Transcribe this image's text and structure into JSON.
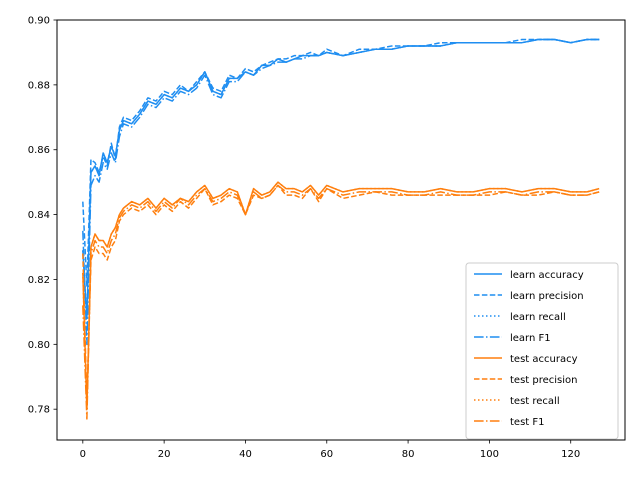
{
  "chart_data": {
    "type": "line",
    "title": "",
    "xlabel": "",
    "ylabel": "",
    "xlim": [
      -6.35,
      133.35
    ],
    "ylim": [
      0.7705,
      0.9
    ],
    "x_ticks": [
      0,
      20,
      40,
      60,
      80,
      100,
      120
    ],
    "x_tick_labels": [
      "0",
      "20",
      "40",
      "60",
      "80",
      "100",
      "120"
    ],
    "y_ticks": [
      0.78,
      0.8,
      0.82,
      0.84,
      0.86,
      0.88,
      0.9
    ],
    "y_tick_labels": [
      "0.78",
      "0.80",
      "0.82",
      "0.84",
      "0.86",
      "0.88",
      "0.90"
    ],
    "grid": false,
    "legend_position": "lower right",
    "x": [
      0,
      1,
      2,
      3,
      4,
      5,
      6,
      7,
      8,
      9,
      10,
      12,
      14,
      16,
      18,
      20,
      22,
      24,
      26,
      28,
      30,
      32,
      34,
      36,
      38,
      40,
      42,
      44,
      46,
      48,
      50,
      52,
      54,
      56,
      58,
      60,
      64,
      68,
      72,
      76,
      80,
      84,
      88,
      92,
      96,
      100,
      104,
      108,
      112,
      116,
      120,
      124,
      127
    ],
    "series": [
      {
        "name": "learn accuracy",
        "color": "#1f8ef1",
        "dash": "solid",
        "values": [
          0.829,
          0.808,
          0.853,
          0.855,
          0.852,
          0.859,
          0.856,
          0.861,
          0.858,
          0.866,
          0.869,
          0.868,
          0.871,
          0.875,
          0.874,
          0.877,
          0.876,
          0.879,
          0.878,
          0.88,
          0.884,
          0.878,
          0.877,
          0.882,
          0.882,
          0.884,
          0.883,
          0.886,
          0.886,
          0.888,
          0.887,
          0.888,
          0.889,
          0.889,
          0.889,
          0.89,
          0.889,
          0.89,
          0.891,
          0.891,
          0.892,
          0.892,
          0.892,
          0.893,
          0.893,
          0.893,
          0.893,
          0.893,
          0.894,
          0.894,
          0.893,
          0.894,
          0.894
        ]
      },
      {
        "name": "learn precision",
        "color": "#1f8ef1",
        "dash": "dashed",
        "values": [
          0.844,
          0.818,
          0.857,
          0.856,
          0.853,
          0.858,
          0.855,
          0.862,
          0.857,
          0.867,
          0.87,
          0.869,
          0.872,
          0.876,
          0.875,
          0.878,
          0.877,
          0.88,
          0.878,
          0.881,
          0.884,
          0.879,
          0.878,
          0.883,
          0.882,
          0.885,
          0.884,
          0.886,
          0.887,
          0.888,
          0.888,
          0.889,
          0.889,
          0.89,
          0.889,
          0.891,
          0.889,
          0.891,
          0.891,
          0.892,
          0.892,
          0.892,
          0.893,
          0.893,
          0.893,
          0.893,
          0.893,
          0.894,
          0.894,
          0.894,
          0.893,
          0.894,
          0.894
        ]
      },
      {
        "name": "learn recall",
        "color": "#1f8ef1",
        "dash": "dotted",
        "values": [
          0.829,
          0.808,
          0.853,
          0.855,
          0.852,
          0.859,
          0.856,
          0.861,
          0.858,
          0.866,
          0.869,
          0.868,
          0.871,
          0.875,
          0.874,
          0.877,
          0.876,
          0.879,
          0.878,
          0.88,
          0.884,
          0.878,
          0.877,
          0.882,
          0.882,
          0.884,
          0.883,
          0.886,
          0.886,
          0.888,
          0.887,
          0.888,
          0.889,
          0.889,
          0.889,
          0.89,
          0.889,
          0.89,
          0.891,
          0.891,
          0.892,
          0.892,
          0.892,
          0.893,
          0.893,
          0.893,
          0.893,
          0.893,
          0.894,
          0.894,
          0.893,
          0.894,
          0.894
        ]
      },
      {
        "name": "learn F1",
        "color": "#1f8ef1",
        "dash": "dashdot",
        "values": [
          0.835,
          0.8,
          0.849,
          0.852,
          0.85,
          0.856,
          0.854,
          0.859,
          0.856,
          0.864,
          0.868,
          0.867,
          0.87,
          0.874,
          0.873,
          0.876,
          0.875,
          0.878,
          0.877,
          0.879,
          0.883,
          0.877,
          0.876,
          0.881,
          0.881,
          0.884,
          0.883,
          0.885,
          0.886,
          0.887,
          0.887,
          0.888,
          0.888,
          0.889,
          0.889,
          0.89,
          0.889,
          0.89,
          0.891,
          0.891,
          0.892,
          0.892,
          0.892,
          0.893,
          0.893,
          0.893,
          0.893,
          0.893,
          0.894,
          0.894,
          0.893,
          0.894,
          0.894
        ]
      },
      {
        "name": "test accuracy",
        "color": "#ff7f0e",
        "dash": "solid",
        "values": [
          0.822,
          0.78,
          0.83,
          0.834,
          0.832,
          0.832,
          0.83,
          0.834,
          0.836,
          0.84,
          0.842,
          0.844,
          0.843,
          0.845,
          0.842,
          0.845,
          0.843,
          0.845,
          0.844,
          0.847,
          0.849,
          0.845,
          0.846,
          0.848,
          0.847,
          0.84,
          0.848,
          0.846,
          0.847,
          0.85,
          0.848,
          0.848,
          0.847,
          0.849,
          0.846,
          0.849,
          0.847,
          0.848,
          0.848,
          0.848,
          0.847,
          0.847,
          0.848,
          0.847,
          0.847,
          0.848,
          0.848,
          0.847,
          0.848,
          0.848,
          0.847,
          0.847,
          0.848
        ]
      },
      {
        "name": "test precision",
        "color": "#ff7f0e",
        "dash": "dashed",
        "values": [
          0.828,
          0.782,
          0.826,
          0.83,
          0.828,
          0.828,
          0.826,
          0.83,
          0.832,
          0.838,
          0.84,
          0.842,
          0.841,
          0.843,
          0.84,
          0.843,
          0.841,
          0.844,
          0.842,
          0.845,
          0.848,
          0.843,
          0.844,
          0.846,
          0.845,
          0.84,
          0.846,
          0.845,
          0.846,
          0.849,
          0.846,
          0.846,
          0.845,
          0.848,
          0.844,
          0.848,
          0.845,
          0.846,
          0.847,
          0.846,
          0.846,
          0.846,
          0.846,
          0.846,
          0.846,
          0.846,
          0.847,
          0.846,
          0.846,
          0.847,
          0.846,
          0.846,
          0.847
        ]
      },
      {
        "name": "test recall",
        "color": "#ff7f0e",
        "dash": "dotted",
        "values": [
          0.822,
          0.78,
          0.83,
          0.834,
          0.832,
          0.832,
          0.83,
          0.834,
          0.836,
          0.84,
          0.842,
          0.844,
          0.843,
          0.845,
          0.842,
          0.845,
          0.843,
          0.845,
          0.844,
          0.847,
          0.849,
          0.845,
          0.846,
          0.848,
          0.847,
          0.84,
          0.848,
          0.846,
          0.847,
          0.85,
          0.848,
          0.848,
          0.847,
          0.849,
          0.846,
          0.849,
          0.847,
          0.848,
          0.848,
          0.848,
          0.847,
          0.847,
          0.848,
          0.847,
          0.847,
          0.848,
          0.848,
          0.847,
          0.848,
          0.848,
          0.847,
          0.847,
          0.848
        ]
      },
      {
        "name": "test F1",
        "color": "#ff7f0e",
        "dash": "dashdot",
        "values": [
          0.812,
          0.777,
          0.828,
          0.832,
          0.83,
          0.83,
          0.828,
          0.832,
          0.834,
          0.839,
          0.841,
          0.843,
          0.842,
          0.844,
          0.841,
          0.844,
          0.842,
          0.845,
          0.843,
          0.846,
          0.848,
          0.844,
          0.845,
          0.847,
          0.846,
          0.84,
          0.847,
          0.845,
          0.846,
          0.849,
          0.847,
          0.847,
          0.846,
          0.848,
          0.845,
          0.848,
          0.846,
          0.847,
          0.847,
          0.847,
          0.846,
          0.846,
          0.847,
          0.846,
          0.846,
          0.847,
          0.847,
          0.846,
          0.847,
          0.847,
          0.846,
          0.846,
          0.847
        ]
      }
    ]
  }
}
